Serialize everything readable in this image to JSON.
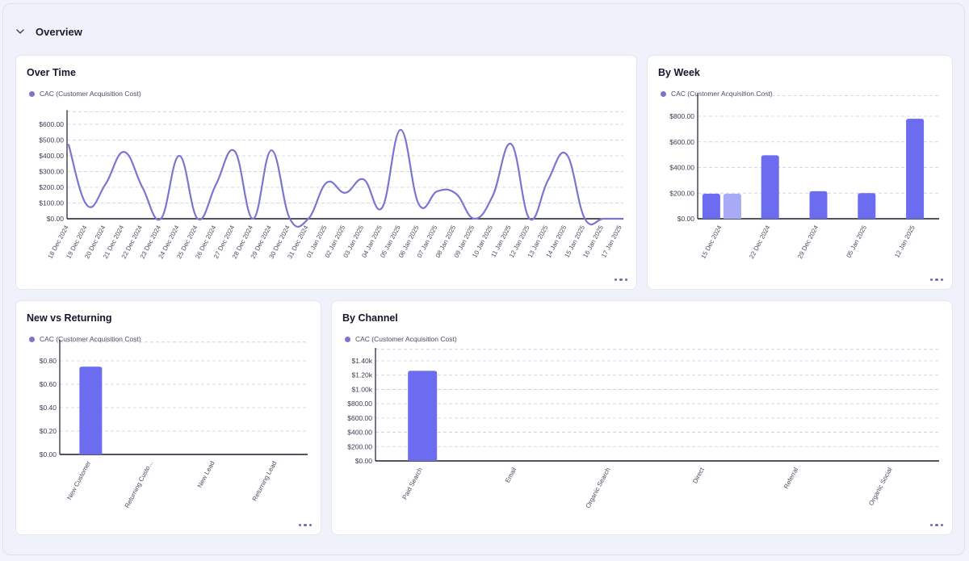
{
  "section": {
    "title": "Overview"
  },
  "colors": {
    "accent": "#6b6cef",
    "line": "#7a76d0",
    "bar_light": "#a9aaf6",
    "grid": "#c5cbe0",
    "axis": "#1a1c2c"
  },
  "panels": {
    "over_time": {
      "title": "Over Time",
      "legend": "CAC (Customer Acquisition Cost)"
    },
    "by_week": {
      "title": "By Week",
      "legend": "CAC (Customer Acquisition Cost)"
    },
    "new_vs_returning": {
      "title": "New vs Returning",
      "legend": "CAC (Customer Acquisition Cost)"
    },
    "by_channel": {
      "title": "By Channel",
      "legend": "CAC (Customer Acquisition Cost)"
    }
  },
  "chart_data": [
    {
      "id": "over_time",
      "type": "line",
      "title": "Over Time",
      "categories": [
        "18 Dec 2024",
        "19 Dec 2024",
        "20 Dec 2024",
        "21 Dec 2024",
        "22 Dec 2024",
        "23 Dec 2024",
        "24 Dec 2024",
        "25 Dec 2024",
        "26 Dec 2024",
        "27 Dec 2024",
        "28 Dec 2024",
        "29 Dec 2024",
        "30 Dec 2024",
        "31 Dec 2024",
        "01 Jan 2025",
        "02 Jan 2025",
        "03 Jan 2025",
        "04 Jan 2025",
        "05 Jan 2025",
        "06 Jan 2025",
        "07 Jan 2025",
        "08 Jan 2025",
        "09 Jan 2025",
        "10 Jan 2025",
        "11 Jan 2025",
        "12 Jan 2025",
        "13 Jan 2025",
        "14 Jan 2025",
        "15 Jan 2025",
        "16 Jan 2025",
        "17 Jan 2025"
      ],
      "series": [
        {
          "name": "CAC (Customer Acquisition Cost)",
          "values": [
            470,
            85,
            220,
            425,
            200,
            0,
            400,
            0,
            220,
            430,
            0,
            435,
            0,
            0,
            230,
            165,
            250,
            70,
            565,
            90,
            175,
            160,
            0,
            145,
            475,
            0,
            245,
            410,
            0,
            0,
            0
          ]
        }
      ],
      "yticks": [
        "$0.00",
        "$100.00",
        "$200.00",
        "$300.00",
        "$400.00",
        "$500.00",
        "$600.00"
      ],
      "ylim": [
        0,
        600
      ],
      "grid": true
    },
    {
      "id": "by_week",
      "type": "bar",
      "title": "By Week",
      "categories": [
        "15 Dec 2024",
        "22 Dec 2024",
        "29 Dec 2024",
        "05 Jan 2025",
        "12 Jan 2025"
      ],
      "series": [
        {
          "name": "CAC (Customer Acquisition Cost)",
          "values": [
            195,
            495,
            215,
            200,
            780
          ]
        },
        {
          "values": [
            195,
            null,
            null,
            null,
            null
          ]
        }
      ],
      "yticks": [
        "$0.00",
        "$200.00",
        "$400.00",
        "$600.00",
        "$800.00"
      ],
      "ylim": [
        0,
        800
      ],
      "grid": true
    },
    {
      "id": "new_vs_returning",
      "type": "bar",
      "title": "New vs Returning",
      "categories": [
        "New Customer",
        "Returning Custo...",
        "New Lead",
        "Returning Lead"
      ],
      "series": [
        {
          "name": "CAC (Customer Acquisition Cost)",
          "values": [
            0.75,
            0,
            0,
            0
          ]
        }
      ],
      "yticks": [
        "$0.00",
        "$0.20",
        "$0.40",
        "$0.60",
        "$0.80"
      ],
      "ylim": [
        0,
        0.8
      ],
      "grid": true
    },
    {
      "id": "by_channel",
      "type": "bar",
      "title": "By Channel",
      "categories": [
        "Paid Search",
        "Email",
        "Organic Search",
        "Direct",
        "Referral",
        "Organic Social"
      ],
      "series": [
        {
          "name": "CAC (Customer Acquisition Cost)",
          "values": [
            1260,
            0,
            0,
            0,
            0,
            0
          ]
        }
      ],
      "yticks": [
        "$0.00",
        "$200.00",
        "$400.00",
        "$600.00",
        "$800.00",
        "$1.00k",
        "$1.20k",
        "$1.40k"
      ],
      "ylim": [
        0,
        1400
      ],
      "grid": true
    }
  ]
}
